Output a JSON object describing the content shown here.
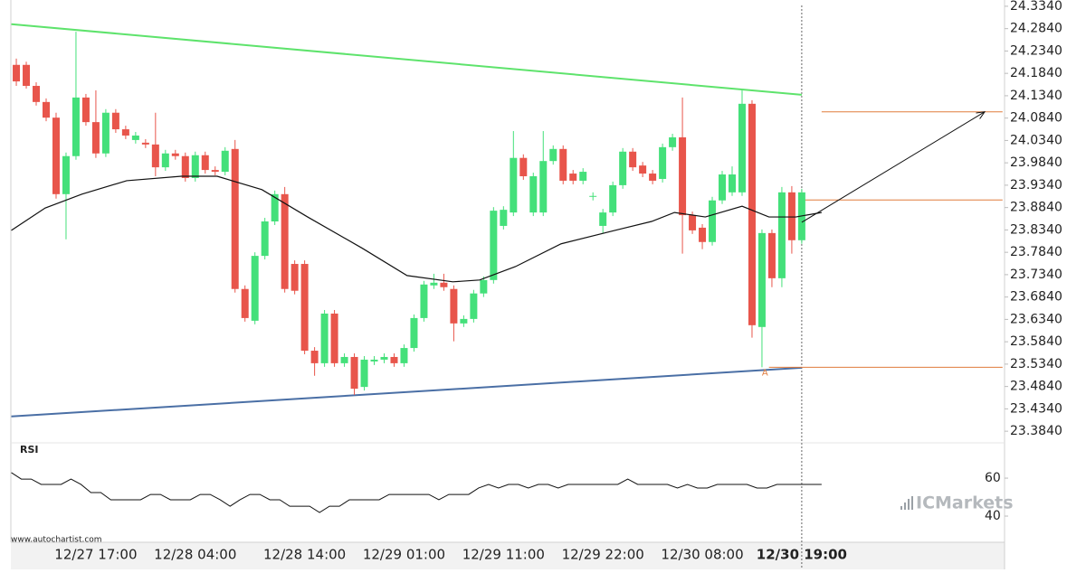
{
  "chart_data": {
    "type": "candlestick",
    "categories": [
      null,
      null,
      null,
      null,
      null,
      null,
      null,
      null,
      "12/27 17:00",
      null,
      null,
      null,
      null,
      null,
      null,
      null,
      null,
      null,
      "12/28 04:00",
      null,
      null,
      null,
      null,
      null,
      null,
      null,
      null,
      null,
      null,
      "12/28 14:00",
      null,
      null,
      null,
      null,
      null,
      null,
      null,
      null,
      null,
      "12/29 01:00",
      null,
      null,
      null,
      null,
      null,
      null,
      null,
      null,
      null,
      "12/29 11:00",
      null,
      null,
      null,
      null,
      null,
      null,
      null,
      null,
      null,
      "12/29 22:00",
      null,
      null,
      null,
      null,
      null,
      null,
      null,
      null,
      null,
      "12/30 08:00",
      null,
      null,
      null,
      null,
      null,
      null,
      null,
      null,
      null,
      "12/30 19:00"
    ],
    "open": [
      24.203,
      24.203,
      24.156,
      24.12,
      24.085,
      23.914,
      23.999,
      24.13,
      24.075,
      24.005,
      24.096,
      24.059,
      24.035,
      24.029,
      24.025,
      23.974,
      24.005,
      23.999,
      23.95,
      24.001,
      23.968,
      23.964,
      24.015,
      23.702,
      23.631,
      23.776,
      23.853,
      23.914,
      23.758,
      23.758,
      23.564,
      23.536,
      23.647,
      23.536,
      23.55,
      23.483,
      23.54,
      23.544,
      23.55,
      23.536,
      23.57,
      23.637,
      23.71,
      23.716,
      23.702,
      23.625,
      23.635,
      23.692,
      23.722,
      23.843,
      23.873,
      23.995,
      23.873,
      23.873,
      23.988,
      24.015,
      23.96,
      23.944,
      23.908,
      23.843,
      23.873,
      23.934,
      24.009,
      23.978,
      23.96,
      23.948,
      24.019,
      24.041,
      23.867,
      23.839,
      23.807,
      23.9,
      23.918,
      23.918,
      24.116,
      23.617,
      23.827,
      23.726,
      23.918,
      23.811
    ],
    "high": [
      24.217,
      24.21,
      24.164,
      24.128,
      24.096,
      24.007,
      24.277,
      24.138,
      24.146,
      24.104,
      24.104,
      24.067,
      24.053,
      24.037,
      24.096,
      24.013,
      24.013,
      24.007,
      24.009,
      24.009,
      23.976,
      24.019,
      24.035,
      23.71,
      23.784,
      23.861,
      23.922,
      23.93,
      23.766,
      23.766,
      23.572,
      23.655,
      23.655,
      23.558,
      23.558,
      23.552,
      23.552,
      23.558,
      23.558,
      23.578,
      23.645,
      23.72,
      23.736,
      23.736,
      23.71,
      23.643,
      23.7,
      23.73,
      23.885,
      23.887,
      24.055,
      24.003,
      23.962,
      24.055,
      24.023,
      24.023,
      23.968,
      23.972,
      23.918,
      23.881,
      23.942,
      24.017,
      24.017,
      23.986,
      23.968,
      24.027,
      24.049,
      24.13,
      23.875,
      23.847,
      23.908,
      23.966,
      23.976,
      24.146,
      24.124,
      23.835,
      23.835,
      23.93,
      23.932,
      23.926
    ],
    "low": [
      24.156,
      24.15,
      24.112,
      24.077,
      23.904,
      23.813,
      23.991,
      24.067,
      23.995,
      23.997,
      24.051,
      24.037,
      24.027,
      24.017,
      23.954,
      23.966,
      23.991,
      23.942,
      23.942,
      23.96,
      23.956,
      23.956,
      23.694,
      23.629,
      23.623,
      23.768,
      23.845,
      23.694,
      23.69,
      23.556,
      23.508,
      23.528,
      23.528,
      23.528,
      23.465,
      23.475,
      23.532,
      23.536,
      23.528,
      23.528,
      23.562,
      23.629,
      23.702,
      23.698,
      23.585,
      23.617,
      23.627,
      23.684,
      23.714,
      23.835,
      23.865,
      23.946,
      23.865,
      23.865,
      23.98,
      23.936,
      23.936,
      23.936,
      23.9,
      23.827,
      23.865,
      23.926,
      23.966,
      23.952,
      23.936,
      23.94,
      24.011,
      23.781,
      23.825,
      23.791,
      23.799,
      23.892,
      23.91,
      23.91,
      23.593,
      23.527,
      23.706,
      23.706,
      23.781,
      23.803
    ],
    "close": [
      24.166,
      24.156,
      24.12,
      24.085,
      23.914,
      23.999,
      24.13,
      24.075,
      24.005,
      24.096,
      24.059,
      24.045,
      24.045,
      24.025,
      23.974,
      24.005,
      23.999,
      23.95,
      24.001,
      23.968,
      23.964,
      24.011,
      23.702,
      23.637,
      23.776,
      23.853,
      23.914,
      23.702,
      23.698,
      23.564,
      23.536,
      23.647,
      23.536,
      23.55,
      23.479,
      23.544,
      23.544,
      23.55,
      23.536,
      23.57,
      23.637,
      23.712,
      23.716,
      23.706,
      23.625,
      23.635,
      23.692,
      23.722,
      23.877,
      23.879,
      23.995,
      23.954,
      23.954,
      23.988,
      24.015,
      23.944,
      23.944,
      23.964,
      23.91,
      23.873,
      23.934,
      24.009,
      23.974,
      23.96,
      23.944,
      24.019,
      24.041,
      23.867,
      23.833,
      23.807,
      23.9,
      23.958,
      23.958,
      24.116,
      23.621,
      23.827,
      23.726,
      23.918,
      23.811,
      23.918
    ],
    "up_color": "#44e07a",
    "down_color": "#e8554b",
    "xlim": [
      -0.55,
      99.4
    ],
    "ylim": [
      23.358,
      24.348
    ],
    "grid": false,
    "yticks": [
      {
        "value": 24.334,
        "label": "24.3340"
      },
      {
        "value": 24.284,
        "label": "24.2840"
      },
      {
        "value": 24.234,
        "label": "24.2340"
      },
      {
        "value": 24.184,
        "label": "24.1840"
      },
      {
        "value": 24.134,
        "label": "24.1340"
      },
      {
        "value": 24.084,
        "label": "24.0840"
      },
      {
        "value": 24.034,
        "label": "24.0340"
      },
      {
        "value": 23.984,
        "label": "23.9840"
      },
      {
        "value": 23.934,
        "label": "23.9340"
      },
      {
        "value": 23.884,
        "label": "23.8840"
      },
      {
        "value": 23.834,
        "label": "23.8340"
      },
      {
        "value": 23.784,
        "label": "23.7840"
      },
      {
        "value": 23.734,
        "label": "23.7340"
      },
      {
        "value": 23.684,
        "label": "23.6840"
      },
      {
        "value": 23.634,
        "label": "23.6340"
      },
      {
        "value": 23.584,
        "label": "23.5840"
      },
      {
        "value": 23.534,
        "label": "23.5340"
      },
      {
        "value": 23.484,
        "label": "23.4840"
      },
      {
        "value": 23.434,
        "label": "23.4340"
      },
      {
        "value": 23.384,
        "label": "23.3840"
      }
    ],
    "moving_average": {
      "color": "#111111",
      "x": [
        -0.5,
        2.9,
        6.6,
        11.1,
        16.6,
        20.2,
        24.7,
        29.3,
        34.8,
        39.3,
        43.9,
        46.6,
        50.2,
        54.8,
        60.2,
        63.9,
        66.2,
        69.3,
        73.0,
        75.7,
        78.4,
        81.0
      ],
      "values": [
        23.833,
        23.883,
        23.914,
        23.944,
        23.954,
        23.954,
        23.924,
        23.863,
        23.793,
        23.732,
        23.718,
        23.722,
        23.752,
        23.803,
        23.833,
        23.853,
        23.873,
        23.863,
        23.887,
        23.863,
        23.863,
        23.873
      ]
    },
    "trendlines": [
      {
        "color": "#5ee36c",
        "x": [
          -0.5,
          79
        ],
        "values": [
          24.294,
          24.136
        ]
      },
      {
        "color": "#4a6fa5",
        "x": [
          -0.5,
          79
        ],
        "values": [
          23.417,
          23.526
        ]
      }
    ],
    "forecast_arrow": {
      "color": "#111111",
      "x": [
        79,
        97.4
      ],
      "values": [
        23.851,
        24.098
      ]
    },
    "levels": [
      {
        "color": "#e07b3c",
        "x": [
          81,
          99.2
        ],
        "value": 24.098
      },
      {
        "color": "#e07b3c",
        "x": [
          79,
          99.2
        ],
        "value": 23.901
      },
      {
        "color": "#e07b3c",
        "x": [
          75.7,
          99.2
        ],
        "value": 23.527
      }
    ],
    "annotation": {
      "text": "A",
      "x": 75.3,
      "value": 23.527,
      "color": "#e07b3c"
    },
    "rsi": {
      "title": "RSI",
      "color": "#111111",
      "ylim": [
        26.2,
        78.6
      ],
      "yticks": [
        60,
        40
      ],
      "x": [
        -0.5,
        0.5,
        1.5,
        2.5,
        3.5,
        4.5,
        5.5,
        6.5,
        7.5,
        8.5,
        9.5,
        10.5,
        11.5,
        12.5,
        13.5,
        14.5,
        15.5,
        16.5,
        17.5,
        18.5,
        19.5,
        20.5,
        21.5,
        22.5,
        23.5,
        24.5,
        25.5,
        26.5,
        27.5,
        28.5,
        29.5,
        30.5,
        31.5,
        32.5,
        33.5,
        34.5,
        35.5,
        36.5,
        37.5,
        38.5,
        39.5,
        40.5,
        41.5,
        42.5,
        43.5,
        44.5,
        45.5,
        46.5,
        47.5,
        48.5,
        49.5,
        50.5,
        51.5,
        52.5,
        53.5,
        54.5,
        55.5,
        56.5,
        57.5,
        58.5,
        59.5,
        60.5,
        61.5,
        62.5,
        63.5,
        64.5,
        65.5,
        66.5,
        67.5,
        68.5,
        69.5,
        70.5,
        71.5,
        72.5,
        73.5,
        74.5,
        75.5,
        76.5,
        77.5,
        78.5,
        79.5,
        81.0
      ],
      "values": [
        62.9,
        59.5,
        59.5,
        56.7,
        56.7,
        56.7,
        59.5,
        56.7,
        52.4,
        52.4,
        48.6,
        48.6,
        48.6,
        48.6,
        51.4,
        51.4,
        48.6,
        48.6,
        48.6,
        51.4,
        51.4,
        48.6,
        45.2,
        48.6,
        51.4,
        51.4,
        48.6,
        48.6,
        45.2,
        45.2,
        45.2,
        41.9,
        45.2,
        45.2,
        48.6,
        48.6,
        48.6,
        48.6,
        51.4,
        51.4,
        51.4,
        51.4,
        51.4,
        48.6,
        51.4,
        51.4,
        51.4,
        54.8,
        56.7,
        54.8,
        56.7,
        56.7,
        54.8,
        56.7,
        56.7,
        54.8,
        56.7,
        56.7,
        56.7,
        56.7,
        56.7,
        56.7,
        59.5,
        56.7,
        56.7,
        56.7,
        56.7,
        54.8,
        56.7,
        54.8,
        54.8,
        56.7,
        56.7,
        56.7,
        56.7,
        54.8,
        54.8,
        56.7,
        56.7,
        56.7,
        56.7,
        56.7
      ]
    },
    "watermark": "www.autochartist.com",
    "brand": "ICMarkets"
  }
}
